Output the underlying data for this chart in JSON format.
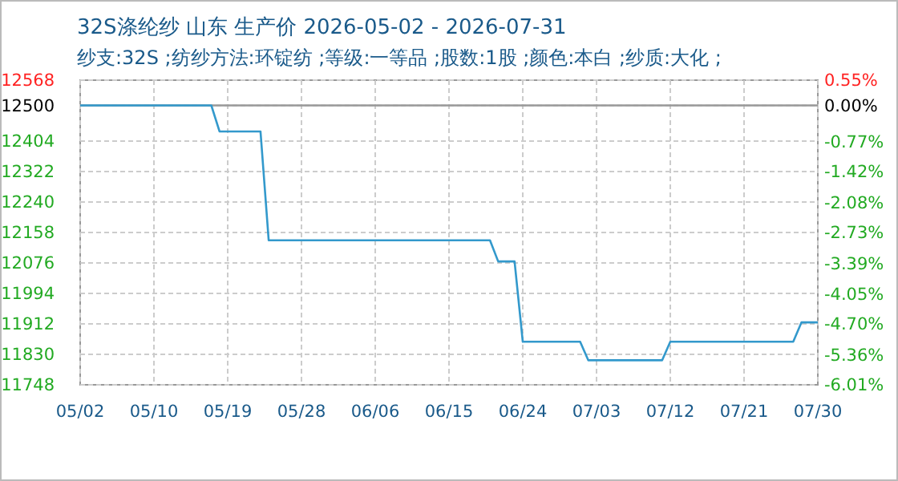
{
  "chart_data": {
    "type": "line",
    "title": "32S涤纶纱 山东 生产价 2026-05-02 - 2026-07-31",
    "subtitle": "纱支:32S ;纺纱方法:环锭纺 ;等级:一等品 ;股数:1股 ;颜色:本白 ;纱质:大化 ;",
    "xlim": [
      "2026-05-02",
      "2026-07-31"
    ],
    "xticks": [
      {
        "value": "2026-05-02",
        "label": "05/02"
      },
      {
        "value": "2026-05-11",
        "label": "05/10"
      },
      {
        "value": "2026-05-20",
        "label": "05/19"
      },
      {
        "value": "2026-05-29",
        "label": "05/28"
      },
      {
        "value": "2026-06-07",
        "label": "06/06"
      },
      {
        "value": "2026-06-16",
        "label": "06/15"
      },
      {
        "value": "2026-06-25",
        "label": "06/24"
      },
      {
        "value": "2026-07-04",
        "label": "07/03"
      },
      {
        "value": "2026-07-13",
        "label": "07/12"
      },
      {
        "value": "2026-07-22",
        "label": "07/21"
      },
      {
        "value": "2026-07-31",
        "label": "07/30"
      }
    ],
    "ylim": [
      11748,
      12568
    ],
    "yticks": [
      11748,
      11830,
      11912,
      11994,
      12076,
      12158,
      12240,
      12322,
      12404,
      12500,
      12568
    ],
    "y2lim": [
      -6.01,
      0.55
    ],
    "y2ticks": [
      {
        "value": -6.01,
        "label": "-6.01%"
      },
      {
        "value": -5.36,
        "label": "-5.36%"
      },
      {
        "value": -4.7,
        "label": "-4.70%"
      },
      {
        "value": -4.05,
        "label": "-4.05%"
      },
      {
        "value": -3.39,
        "label": "-3.39%"
      },
      {
        "value": -2.73,
        "label": "-2.73%"
      },
      {
        "value": -2.08,
        "label": "-2.08%"
      },
      {
        "value": -1.42,
        "label": "-1.42%"
      },
      {
        "value": -0.77,
        "label": "-0.77%"
      },
      {
        "value": 0,
        "label": "0.00%"
      },
      {
        "value": 0.55,
        "label": "0.55%"
      }
    ],
    "grid": true,
    "line_style": "solid",
    "marker": "none",
    "ref_lines": [
      {
        "axis": "y",
        "value": 12500,
        "color": "#999999"
      }
    ],
    "series": [
      {
        "color": "#3399cc",
        "x": [
          "2026-05-02",
          "2026-05-18",
          "2026-05-19",
          "2026-05-24",
          "2026-05-25",
          "2026-06-21",
          "2026-06-22",
          "2026-06-24",
          "2026-06-25",
          "2026-07-02",
          "2026-07-03",
          "2026-07-12",
          "2026-07-13",
          "2026-07-28",
          "2026-07-29",
          "2026-07-31"
        ],
        "values": [
          12500,
          12500,
          12430,
          12430,
          12137,
          12137,
          12080,
          12080,
          11864,
          11864,
          11814,
          11814,
          11864,
          11864,
          11916,
          11916
        ]
      }
    ]
  }
}
